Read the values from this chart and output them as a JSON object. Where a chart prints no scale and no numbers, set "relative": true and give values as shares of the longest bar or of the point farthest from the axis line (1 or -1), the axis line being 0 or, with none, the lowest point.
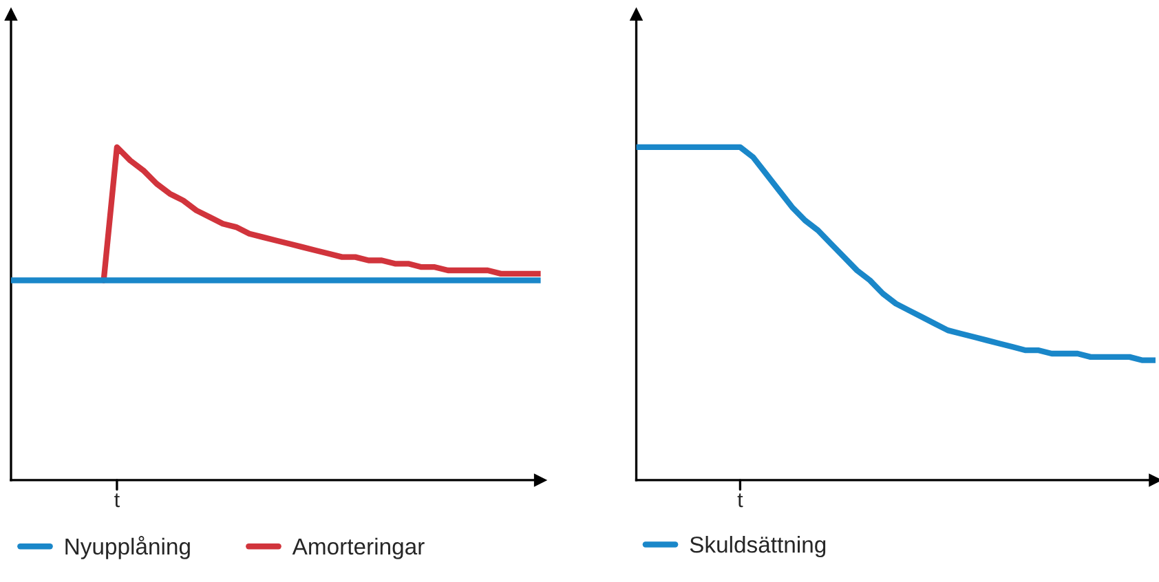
{
  "chart_data": [
    {
      "type": "line",
      "relative": true,
      "legend": "bottom",
      "marker": "none",
      "line_style": "solid",
      "annotations": [
        "t"
      ],
      "categories": [
        null,
        null,
        null,
        null,
        null,
        null,
        null,
        null,
        null,
        null,
        null,
        null,
        null,
        null,
        null,
        null,
        null,
        null,
        null,
        null,
        null,
        null,
        null,
        null,
        null,
        null,
        null,
        null,
        null,
        null,
        null,
        null,
        null,
        null,
        null,
        null,
        null,
        null,
        null,
        null,
        null
      ],
      "series": [
        {
          "name": "Nyupplåning",
          "color": "#1a87c9",
          "values": [
            0.6,
            0.6,
            0.6,
            0.6,
            0.6,
            0.6,
            0.6,
            0.6,
            0.6,
            0.6,
            0.6,
            0.6,
            0.6,
            0.6,
            0.6,
            0.6,
            0.6,
            0.6,
            0.6,
            0.6,
            0.6,
            0.6,
            0.6,
            0.6,
            0.6,
            0.6,
            0.6,
            0.6,
            0.6,
            0.6,
            0.6,
            0.6,
            0.6,
            0.6,
            0.6,
            0.6,
            0.6,
            0.6,
            0.6,
            0.6,
            0.6
          ]
        },
        {
          "name": "Amorteringar",
          "color": "#d1343c",
          "values": [
            null,
            null,
            null,
            null,
            null,
            null,
            null,
            0.6,
            1.0,
            0.96,
            0.93,
            0.89,
            0.86,
            0.84,
            0.81,
            0.79,
            0.77,
            0.76,
            0.74,
            0.73,
            0.72,
            0.71,
            0.7,
            0.69,
            0.68,
            0.67,
            0.67,
            0.66,
            0.66,
            0.65,
            0.65,
            0.64,
            0.64,
            0.63,
            0.63,
            0.63,
            0.63,
            0.62,
            0.62,
            0.62,
            0.62
          ]
        }
      ]
    },
    {
      "type": "line",
      "relative": true,
      "legend": "bottom",
      "marker": "none",
      "line_style": "solid",
      "annotations": [
        "t"
      ],
      "categories": [
        null,
        null,
        null,
        null,
        null,
        null,
        null,
        null,
        null,
        null,
        null,
        null,
        null,
        null,
        null,
        null,
        null,
        null,
        null,
        null,
        null,
        null,
        null,
        null,
        null,
        null,
        null,
        null,
        null,
        null,
        null,
        null,
        null,
        null,
        null,
        null,
        null,
        null,
        null,
        null,
        null
      ],
      "series": [
        {
          "name": "Skuldsättning",
          "color": "#1a87c9",
          "values": [
            1.0,
            1.0,
            1.0,
            1.0,
            1.0,
            1.0,
            1.0,
            1.0,
            1.0,
            0.97,
            0.92,
            0.87,
            0.82,
            0.78,
            0.75,
            0.71,
            0.67,
            0.63,
            0.6,
            0.56,
            0.53,
            0.51,
            0.49,
            0.47,
            0.45,
            0.44,
            0.43,
            0.42,
            0.41,
            0.4,
            0.39,
            0.39,
            0.38,
            0.38,
            0.38,
            0.37,
            0.37,
            0.37,
            0.37,
            0.36,
            0.36
          ]
        }
      ]
    }
  ]
}
